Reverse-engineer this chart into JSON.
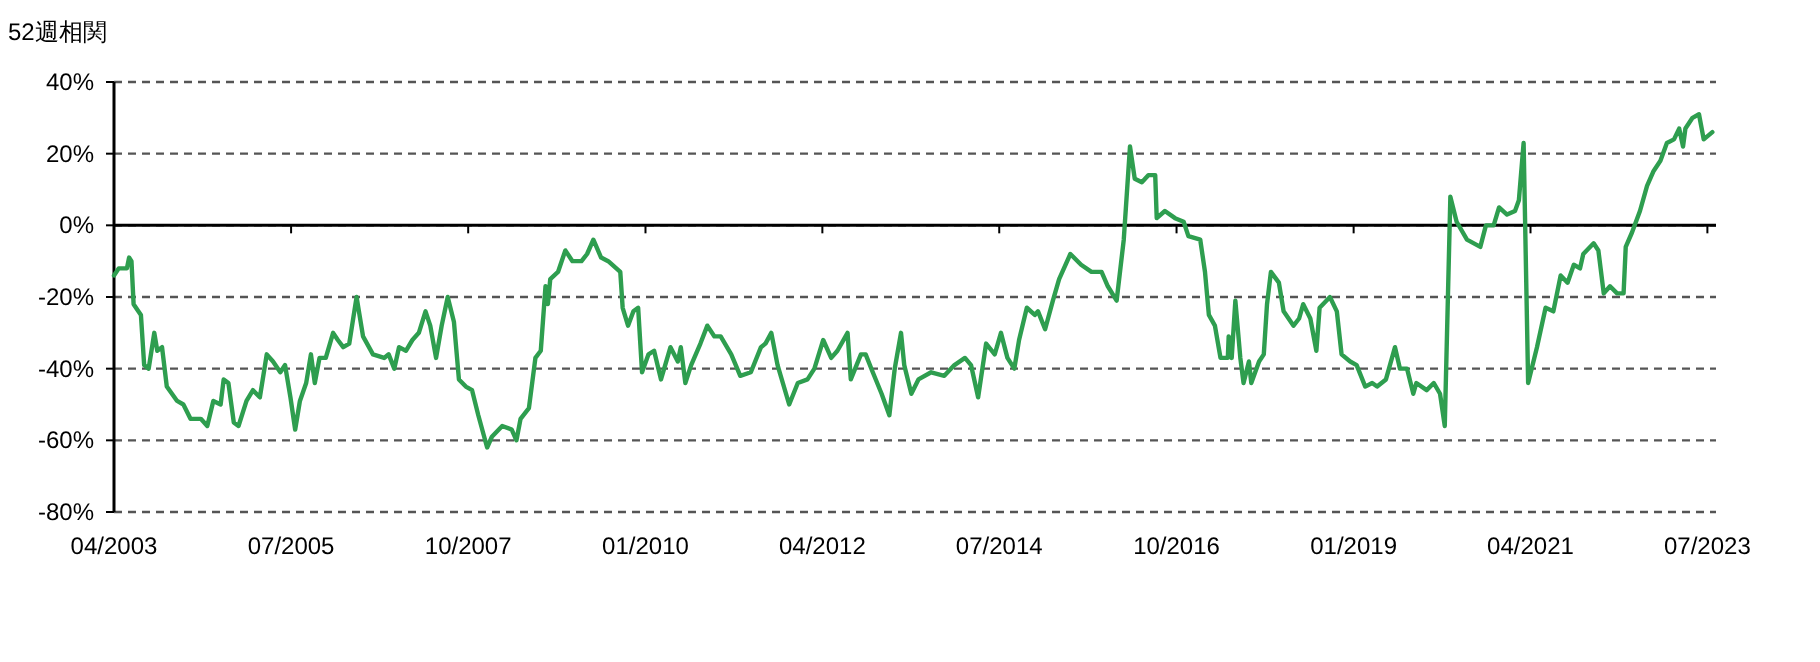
{
  "chart_data": {
    "type": "line",
    "ylabel": "52週相関",
    "color": "#2e9e4f",
    "grid": "y",
    "marker": "none",
    "line_style": "solid",
    "xlim": [
      "2003-04-01",
      "2023-08-10"
    ],
    "ylim": [
      -80,
      40
    ],
    "xticks": [
      {
        "value": "2003-04",
        "label": "04/2003"
      },
      {
        "value": "2005-07",
        "label": "07/2005"
      },
      {
        "value": "2007-10",
        "label": "10/2007"
      },
      {
        "value": "2010-01",
        "label": "01/2010"
      },
      {
        "value": "2012-04",
        "label": "04/2012"
      },
      {
        "value": "2014-07",
        "label": "07/2014"
      },
      {
        "value": "2016-10",
        "label": "10/2016"
      },
      {
        "value": "2019-01",
        "label": "01/2019"
      },
      {
        "value": "2021-04",
        "label": "04/2021"
      },
      {
        "value": "2023-07",
        "label": "07/2023"
      }
    ],
    "yticks": [
      {
        "value": -80,
        "label": "-80%"
      },
      {
        "value": -60,
        "label": "-60%"
      },
      {
        "value": -40,
        "label": "-40%"
      },
      {
        "value": -20,
        "label": "-20%"
      },
      {
        "value": 0,
        "label": "0%"
      },
      {
        "value": 20,
        "label": "20%"
      },
      {
        "value": 40,
        "label": "40%"
      }
    ],
    "x": [
      "2003-04-01",
      "2003-04-23",
      "2003-05-31",
      "2003-06-10",
      "2003-06-21",
      "2003-07-01",
      "2003-08-04",
      "2003-08-19",
      "2003-09-09",
      "2003-10-05",
      "2003-10-19",
      "2003-11-10",
      "2003-12-02",
      "2004-01-19",
      "2004-02-17",
      "2004-03-21",
      "2004-05-08",
      "2004-06-07",
      "2004-07-05",
      "2004-08-08",
      "2004-08-22",
      "2004-09-13",
      "2004-10-08",
      "2004-10-30",
      "2004-12-06",
      "2005-01-05",
      "2005-02-06",
      "2005-03-10",
      "2005-04-08",
      "2005-05-12",
      "2005-06-03",
      "2005-06-28",
      "2005-07-20",
      "2005-08-11",
      "2005-09-09",
      "2005-10-01",
      "2005-10-19",
      "2005-11-10",
      "2005-12-09",
      "2006-01-12",
      "2006-02-03",
      "2006-02-28",
      "2006-03-28",
      "2006-05-01",
      "2006-05-31",
      "2006-07-16",
      "2006-09-06",
      "2006-09-27",
      "2006-10-23",
      "2006-11-14",
      "2006-12-16",
      "2007-01-15",
      "2007-02-14",
      "2007-03-17",
      "2007-04-08",
      "2007-05-05",
      "2007-05-31",
      "2007-06-28",
      "2007-07-27",
      "2007-08-19",
      "2007-09-20",
      "2007-10-19",
      "2007-11-17",
      "2007-12-28",
      "2008-01-19",
      "2008-03-07",
      "2008-04-20",
      "2008-05-12",
      "2008-05-31",
      "2008-07-09",
      "2008-08-08",
      "2008-09-02",
      "2008-09-24",
      "2008-10-05",
      "2008-10-16",
      "2008-11-21",
      "2008-12-25",
      "2009-01-27",
      "2009-03-10",
      "2009-04-05",
      "2009-05-04",
      "2009-06-09",
      "2009-07-12",
      "2009-09-06",
      "2009-09-17",
      "2009-10-12",
      "2009-11-06",
      "2009-11-28",
      "2009-12-16",
      "2010-01-15",
      "2010-02-10",
      "2010-03-14",
      "2010-04-27",
      "2010-05-31",
      "2010-06-14",
      "2010-07-05",
      "2010-08-01",
      "2010-09-13",
      "2010-10-15",
      "2010-11-17",
      "2010-12-16",
      "2011-02-03",
      "2011-03-17",
      "2011-05-05",
      "2011-06-21",
      "2011-07-12",
      "2011-08-08",
      "2011-09-06",
      "2011-10-30",
      "2011-12-09",
      "2012-01-23",
      "2012-02-24",
      "2012-04-05",
      "2012-05-12",
      "2012-06-10",
      "2012-07-27",
      "2012-08-11",
      "2012-09-27",
      "2012-10-19",
      "2012-11-21",
      "2013-01-01",
      "2013-02-06",
      "2013-03-03",
      "2013-04-01",
      "2013-04-16",
      "2013-05-19",
      "2013-06-21",
      "2013-08-19",
      "2013-10-19",
      "2013-12-05",
      "2014-01-23",
      "2014-02-20",
      "2014-03-25",
      "2014-05-01",
      "2014-06-10",
      "2014-07-09",
      "2014-08-08",
      "2014-09-09",
      "2014-10-01",
      "2014-11-06",
      "2014-12-13",
      "2014-12-28",
      "2015-01-30",
      "2015-03-07",
      "2015-04-05",
      "2015-05-27",
      "2015-07-16",
      "2015-09-02",
      "2015-10-19",
      "2015-11-17",
      "2015-12-28",
      "2016-01-30",
      "2016-02-28",
      "2016-03-21",
      "2016-04-23",
      "2016-05-23",
      "2016-06-24",
      "2016-07-01",
      "2016-08-08",
      "2016-09-24",
      "2016-11-03",
      "2016-11-25",
      "2017-01-19",
      "2017-02-10",
      "2017-02-28",
      "2017-03-28",
      "2017-04-23",
      "2017-05-27",
      "2017-05-31",
      "2017-06-14",
      "2017-07-01",
      "2017-07-24",
      "2017-08-08",
      "2017-09-02",
      "2017-09-13",
      "2017-10-19",
      "2017-11-10",
      "2017-11-25",
      "2017-12-13",
      "2018-01-19",
      "2018-02-10",
      "2018-03-28",
      "2018-04-23",
      "2018-05-12",
      "2018-06-14",
      "2018-07-12",
      "2018-07-27",
      "2018-09-13",
      "2018-10-15",
      "2018-11-06",
      "2018-12-16",
      "2019-01-15",
      "2019-02-24",
      "2019-03-28",
      "2019-04-20",
      "2019-05-31",
      "2019-07-12",
      "2019-08-04",
      "2019-09-06",
      "2019-10-05",
      "2019-10-19",
      "2019-12-06",
      "2020-01-08",
      "2020-02-06",
      "2020-02-28",
      "2020-03-25",
      "2020-04-23",
      "2020-06-10",
      "2020-08-11",
      "2020-09-06",
      "2020-10-12",
      "2020-11-06",
      "2020-12-13",
      "2021-01-19",
      "2021-02-06",
      "2021-02-28",
      "2021-03-21",
      "2021-05-01",
      "2021-06-10",
      "2021-07-16",
      "2021-08-19",
      "2021-09-20",
      "2021-10-19",
      "2021-11-17",
      "2021-12-02",
      "2022-01-19",
      "2022-02-10",
      "2022-03-07",
      "2022-04-05",
      "2022-05-08",
      "2022-06-07",
      "2022-06-17",
      "2022-07-16",
      "2022-08-22",
      "2022-09-24",
      "2022-10-23",
      "2022-11-25",
      "2022-12-25",
      "2023-01-27",
      "2023-02-20",
      "2023-03-10",
      "2023-03-21",
      "2023-04-23",
      "2023-05-23",
      "2023-06-14",
      "2023-07-24"
    ],
    "values": [
      -14,
      -12,
      -12,
      -9,
      -10,
      -22,
      -25,
      -39,
      -40,
      -30,
      -35,
      -34,
      -45,
      -49,
      -50,
      -54,
      -54,
      -56,
      -49,
      -50,
      -43,
      -44,
      -55,
      -56,
      -49,
      -46,
      -48,
      -36,
      -38,
      -41,
      -39,
      -48,
      -57,
      -49,
      -44,
      -36,
      -44,
      -37,
      -37,
      -30,
      -32,
      -34,
      -33,
      -20,
      -31,
      -36,
      -37,
      -36,
      -40,
      -34,
      -35,
      -32,
      -30,
      -24,
      -28,
      -37,
      -28,
      -20,
      -27,
      -43,
      -45,
      -46,
      -53,
      -62,
      -59,
      -56,
      -57,
      -60,
      -54,
      -51,
      -37,
      -35,
      -17,
      -22,
      -15,
      -13,
      -7,
      -10,
      -10,
      -8,
      -4,
      -9,
      -10,
      -13,
      -23,
      -28,
      -24,
      -23,
      -41,
      -36,
      -35,
      -43,
      -34,
      -38,
      -34,
      -44,
      -39,
      -33,
      -28,
      -31,
      -31,
      -36,
      -42,
      -41,
      -34,
      -33,
      -30,
      -39,
      -50,
      -44,
      -43,
      -40,
      -32,
      -37,
      -35,
      -30,
      -43,
      -36,
      -36,
      -41,
      -47,
      -53,
      -40,
      -30,
      -39,
      -47,
      -43,
      -41,
      -42,
      -39,
      -37,
      -39,
      -48,
      -33,
      -36,
      -30,
      -37,
      -40,
      -32,
      -23,
      -25,
      -24,
      -29,
      -21,
      -15,
      -8,
      -11,
      -13,
      -13,
      -17,
      -21,
      -4,
      22,
      13,
      12,
      14,
      14,
      2,
      4,
      2,
      1,
      -3,
      -4,
      -13,
      -25,
      -28,
      -37,
      -37,
      -31,
      -37,
      -21,
      -37,
      -44,
      -38,
      -44,
      -38,
      -36,
      -22,
      -13,
      -16,
      -24,
      -28,
      -26,
      -22,
      -26,
      -35,
      -23,
      -20,
      -24,
      -36,
      -38,
      -39,
      -45,
      -44,
      -45,
      -43,
      -34,
      -40,
      -40,
      -47,
      -44,
      -46,
      -44,
      -47,
      -56,
      8,
      1,
      -4,
      -6,
      0,
      0,
      5,
      3,
      4,
      7,
      23,
      -44,
      -34,
      -23,
      -24,
      -14,
      -16,
      -11,
      -12,
      -8,
      -5,
      -7,
      -19,
      -17,
      -19,
      -19,
      -6,
      -2,
      4,
      11,
      15,
      18,
      23,
      24,
      27,
      22,
      27,
      30,
      31,
      24,
      26
    ]
  }
}
